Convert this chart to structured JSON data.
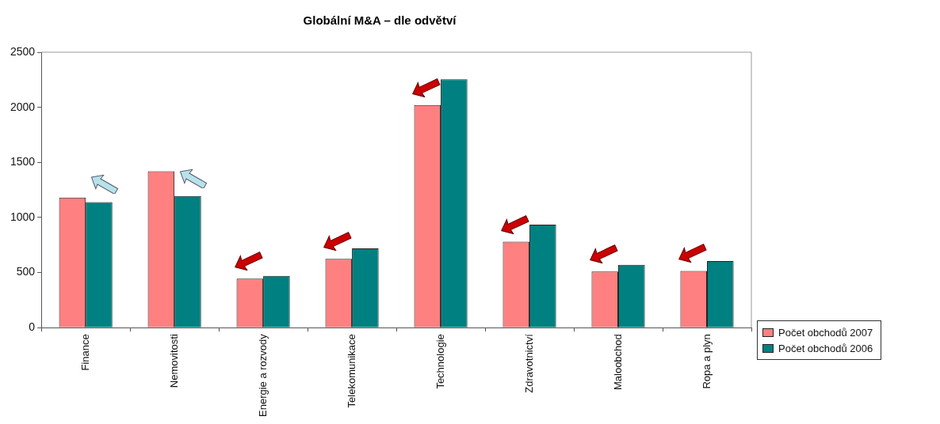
{
  "chart_data": {
    "type": "bar",
    "title": "Globální M&A – dle odvětví",
    "categories": [
      "Finance",
      "Nemovitosti",
      "Energie a rozvody",
      "Telekomunikace",
      "Technologie",
      "Zdravotnictví",
      "Maloobchod",
      "Ropa a plyn"
    ],
    "series": [
      {
        "name": "Počet obchodů 2007",
        "color": "#ff8080",
        "values": [
          1180,
          1420,
          445,
          625,
          2020,
          780,
          510,
          515
        ]
      },
      {
        "name": "Počet obchodů 2006",
        "color": "#008080",
        "values": [
          1140,
          1195,
          470,
          720,
          2255,
          935,
          570,
          605
        ]
      }
    ],
    "ylim": [
      0,
      2500
    ],
    "yticks": [
      0,
      500,
      1000,
      1500,
      2000,
      2500
    ],
    "legend": "bottom right"
  }
}
